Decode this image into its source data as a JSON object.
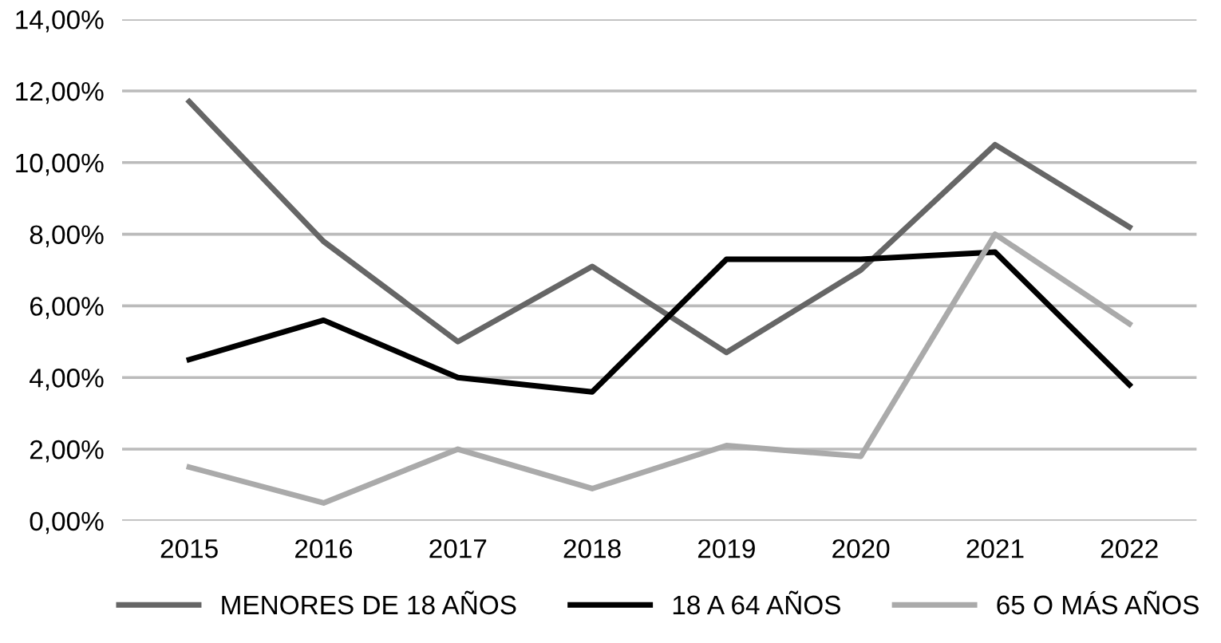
{
  "chart_data": {
    "type": "line",
    "categories": [
      "2015",
      "2016",
      "2017",
      "2018",
      "2019",
      "2020",
      "2021",
      "2022"
    ],
    "series": [
      {
        "name": "MENORES DE 18 AÑOS",
        "color": "#666666",
        "values": [
          11.7,
          7.8,
          5.0,
          7.1,
          4.7,
          7.0,
          10.5,
          8.2
        ]
      },
      {
        "name": "18 A 64 AÑOS",
        "color": "#000000",
        "values": [
          4.5,
          5.6,
          4.0,
          3.6,
          7.3,
          7.3,
          7.5,
          3.8
        ]
      },
      {
        "name": "65 O MÁS AÑOS",
        "color": "#aaaaaa",
        "values": [
          1.5,
          0.5,
          2.0,
          0.9,
          2.1,
          1.8,
          8.0,
          5.5
        ]
      }
    ],
    "ylim": [
      0,
      14
    ],
    "yticks": [
      {
        "value": 0,
        "label": "0,00%"
      },
      {
        "value": 2,
        "label": "2,00%"
      },
      {
        "value": 4,
        "label": "4,00%"
      },
      {
        "value": 6,
        "label": "6,00%"
      },
      {
        "value": 8,
        "label": "8,00%"
      },
      {
        "value": 10,
        "label": "10,00%"
      },
      {
        "value": 12,
        "label": "12,00%"
      },
      {
        "value": 14,
        "label": "14,00%"
      }
    ],
    "grid": "y",
    "legend": "bottom",
    "marker": "none",
    "line_style": "solid"
  }
}
